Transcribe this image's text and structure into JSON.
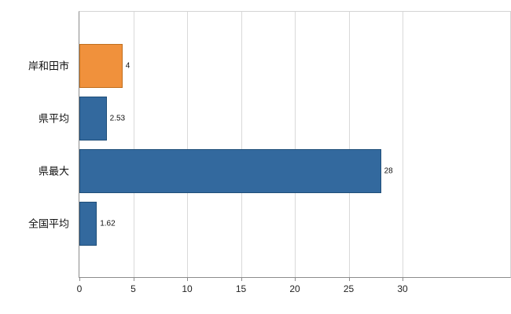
{
  "chart_data": {
    "type": "bar",
    "orientation": "horizontal",
    "title": "",
    "xlabel": "",
    "ylabel": "",
    "categories": [
      "岸和田市",
      "県平均",
      "県最大",
      "全国平均"
    ],
    "values": [
      4,
      2.53,
      28,
      1.62
    ],
    "value_labels": [
      "4",
      "2.53",
      "28",
      "1.62"
    ],
    "bar_colors": [
      "#f0913c",
      "#33699e",
      "#33699e",
      "#33699e"
    ],
    "bar_border_colors": [
      "#c06f1f",
      "#1f4e79",
      "#1f4e79",
      "#1f4e79"
    ],
    "xlim": [
      0,
      40
    ],
    "xticks": [
      0,
      5,
      10,
      15,
      20,
      25,
      30
    ],
    "grid": true,
    "legend": "none",
    "colors": {
      "grid": "#d9d9d9",
      "axis": "#8c8c8c",
      "background": "#ffffff",
      "text": "#111111"
    }
  }
}
